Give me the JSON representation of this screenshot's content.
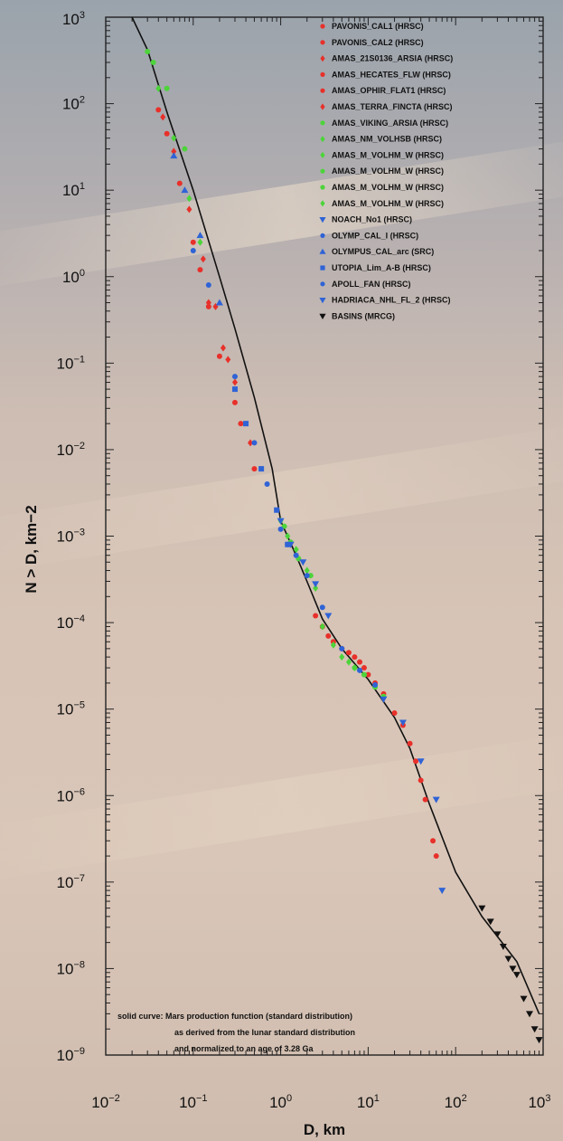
{
  "chart_data": {
    "type": "scatter",
    "xscale": "log",
    "yscale": "log",
    "xlabel": "D, km",
    "ylabel": "N > D, km−2",
    "xlim": [
      0.01,
      1000
    ],
    "ylim": [
      1e-09,
      1000
    ],
    "x_ticks": [
      {
        "value": 0.01,
        "base": "10",
        "exp": "−2"
      },
      {
        "value": 0.1,
        "base": "10",
        "exp": "−1"
      },
      {
        "value": 1,
        "base": "10",
        "exp": "0"
      },
      {
        "value": 10,
        "base": "10",
        "exp": "1"
      },
      {
        "value": 100,
        "base": "10",
        "exp": "2"
      },
      {
        "value": 1000,
        "base": "10",
        "exp": "3"
      }
    ],
    "y_ticks": [
      {
        "value": 1000,
        "base": "10",
        "exp": "3"
      },
      {
        "value": 100,
        "base": "10",
        "exp": "2"
      },
      {
        "value": 10,
        "base": "10",
        "exp": "1"
      },
      {
        "value": 1,
        "base": "10",
        "exp": "0"
      },
      {
        "value": 0.1,
        "base": "10",
        "exp": "−1"
      },
      {
        "value": 0.01,
        "base": "10",
        "exp": "−2"
      },
      {
        "value": 0.001,
        "base": "10",
        "exp": "−3"
      },
      {
        "value": 0.0001,
        "base": "10",
        "exp": "−4"
      },
      {
        "value": 1e-05,
        "base": "10",
        "exp": "−5"
      },
      {
        "value": 1e-06,
        "base": "10",
        "exp": "−6"
      },
      {
        "value": 1e-07,
        "base": "10",
        "exp": "−7"
      },
      {
        "value": 1e-08,
        "base": "10",
        "exp": "−8"
      },
      {
        "value": 1e-09,
        "base": "10",
        "exp": "−9"
      }
    ],
    "fit_curve": {
      "name": "solid curve",
      "x": [
        0.02,
        0.03,
        0.05,
        0.1,
        0.2,
        0.3,
        0.5,
        0.8,
        1,
        1.5,
        2,
        3,
        5,
        10,
        20,
        30,
        50,
        100,
        200,
        500,
        900
      ],
      "y": [
        1000,
        420,
        80,
        10,
        1,
        0.25,
        0.04,
        0.006,
        0.0015,
        0.0006,
        0.0003,
        0.00011,
        5e-05,
        2.2e-05,
        8e-06,
        3.5e-06,
        8e-07,
        1.3e-07,
        4e-08,
        1.2e-08,
        3e-09
      ]
    },
    "series": [
      {
        "name": "PAVONIS_CAL1 (HRSC)",
        "color": "#e8302a",
        "marker": "circle",
        "x": [
          0.04,
          0.05,
          0.07,
          0.1,
          0.12,
          0.15,
          0.2,
          0.3,
          0.35,
          0.5
        ],
        "y": [
          85,
          45,
          12,
          2.5,
          1.2,
          0.45,
          0.12,
          0.035,
          0.02,
          0.006
        ]
      },
      {
        "name": "PAVONIS_CAL2 (HRSC)",
        "color": "#e8302a",
        "marker": "circle",
        "x": [
          3,
          4,
          6,
          8,
          10,
          15,
          20,
          30,
          40,
          55
        ],
        "y": [
          9e-05,
          6e-05,
          4.5e-05,
          3.5e-05,
          2.5e-05,
          1.5e-05,
          9e-06,
          4e-06,
          1.5e-06,
          3e-07
        ]
      },
      {
        "name": "AMAS_21S0136_ARSIA (HRSC)",
        "color": "#e8302a",
        "marker": "diamond",
        "x": [
          0.045,
          0.06,
          0.09,
          0.13,
          0.18,
          0.25
        ],
        "y": [
          70,
          28,
          6,
          1.6,
          0.45,
          0.11
        ]
      },
      {
        "name": "AMAS_HECATES_FLW (HRSC)",
        "color": "#e8302a",
        "marker": "circle",
        "x": [
          2.5,
          3.5,
          5,
          7,
          9,
          12
        ],
        "y": [
          0.00012,
          7e-05,
          5e-05,
          4e-05,
          3e-05,
          2e-05
        ]
      },
      {
        "name": "AMAS_OPHIR_FLAT1 (HRSC)",
        "color": "#e8302a",
        "marker": "circle",
        "x": [
          25,
          35,
          45,
          60
        ],
        "y": [
          6.5e-06,
          2.5e-06,
          9e-07,
          2e-07
        ]
      },
      {
        "name": "AMAS_TERRA_FINCTA (HRSC)",
        "color": "#e8302a",
        "marker": "diamond",
        "x": [
          0.15,
          0.22,
          0.3,
          0.45
        ],
        "y": [
          0.5,
          0.15,
          0.06,
          0.012
        ]
      },
      {
        "name": "AMAS_VIKING_ARSIA (HRSC)",
        "color": "#4cd43a",
        "marker": "circle",
        "x": [
          0.03,
          0.035,
          0.05,
          0.08
        ],
        "y": [
          400,
          300,
          150,
          30
        ]
      },
      {
        "name": "AMAS_NM_VOLHSB (HRSC)",
        "color": "#4cd43a",
        "marker": "diamond",
        "x": [
          1,
          1.2,
          1.5,
          2,
          2.5
        ],
        "y": [
          0.0015,
          0.001,
          0.0007,
          0.0004,
          0.00025
        ]
      },
      {
        "name": "AMAS_M_VOLHM_W (HRSC)",
        "color": "#4cd43a",
        "marker": "diamond",
        "x": [
          3,
          4,
          5,
          6,
          7
        ],
        "y": [
          9e-05,
          5.5e-05,
          4e-05,
          3.5e-05,
          3e-05
        ]
      },
      {
        "name": "AMAS_M_VOLHM_W (HRSC)",
        "color": "#4cd43a",
        "marker": "circle",
        "x": [
          1.1,
          1.3,
          1.6,
          2.2
        ],
        "y": [
          0.0013,
          0.00085,
          0.00055,
          0.00035
        ]
      },
      {
        "name": "AMAS_M_VOLHM_W (HRSC)",
        "color": "#4cd43a",
        "marker": "circle",
        "x": [
          7,
          9,
          12,
          15
        ],
        "y": [
          3e-05,
          2.5e-05,
          1.8e-05,
          1.4e-05
        ]
      },
      {
        "name": "AMAS_M_VOLHM_W (HRSC)",
        "color": "#4cd43a",
        "marker": "diamond",
        "x": [
          0.04,
          0.06,
          0.09,
          0.12
        ],
        "y": [
          150,
          40,
          8,
          2.5
        ]
      },
      {
        "name": "NOACH_No1 (HRSC)",
        "color": "#2f63d6",
        "marker": "triangle-down",
        "x": [
          1,
          1.3,
          1.8,
          2.5,
          3.5
        ],
        "y": [
          0.0015,
          0.0008,
          0.0005,
          0.00028,
          0.00012
        ]
      },
      {
        "name": "OLYMP_CAL_I (HRSC)",
        "color": "#2f63d6",
        "marker": "circle",
        "x": [
          0.1,
          0.15,
          0.3,
          0.5,
          0.7,
          1,
          1.2
        ],
        "y": [
          2,
          0.8,
          0.07,
          0.012,
          0.004,
          0.0012,
          0.0008
        ]
      },
      {
        "name": "OLYMPUS_CAL_arc (SRC)",
        "color": "#2f63d6",
        "marker": "triangle",
        "x": [
          0.06,
          0.08,
          0.12,
          0.2
        ],
        "y": [
          25,
          10,
          3,
          0.5
        ]
      },
      {
        "name": "UTOPIA_Lim_A-B (HRSC)",
        "color": "#2f63d6",
        "marker": "square",
        "x": [
          0.3,
          0.4,
          0.6,
          0.9,
          1.2
        ],
        "y": [
          0.05,
          0.02,
          0.006,
          0.002,
          0.0008
        ]
      },
      {
        "name": "APOLL_FAN (HRSC)",
        "color": "#2f63d6",
        "marker": "circle",
        "x": [
          1.5,
          2,
          3,
          5,
          8,
          12
        ],
        "y": [
          0.0006,
          0.00035,
          0.00015,
          5e-05,
          2.8e-05,
          1.9e-05
        ]
      },
      {
        "name": "HADRIACA_NHL_FL_2 (HRSC)",
        "color": "#2f63d6",
        "marker": "triangle-down",
        "x": [
          15,
          25,
          40,
          60,
          70
        ],
        "y": [
          1.3e-05,
          7e-06,
          2.5e-06,
          9e-07,
          8e-08
        ]
      },
      {
        "name": "BASINS (MRCG)",
        "color": "#111111",
        "marker": "triangle-down",
        "x": [
          200,
          250,
          300,
          350,
          400,
          450,
          500,
          600,
          700,
          800,
          900
        ],
        "y": [
          5e-08,
          3.5e-08,
          2.5e-08,
          1.8e-08,
          1.3e-08,
          1e-08,
          8.5e-09,
          4.5e-09,
          3e-09,
          2e-09,
          1.5e-09
        ]
      }
    ],
    "annotation": [
      "solid curve: Mars production function (standard distribution)",
      "as derived from the lunar standard distribution",
      "and normalized to an age of 3.28 Ga"
    ],
    "legend_position": "top-right",
    "grid": false
  }
}
